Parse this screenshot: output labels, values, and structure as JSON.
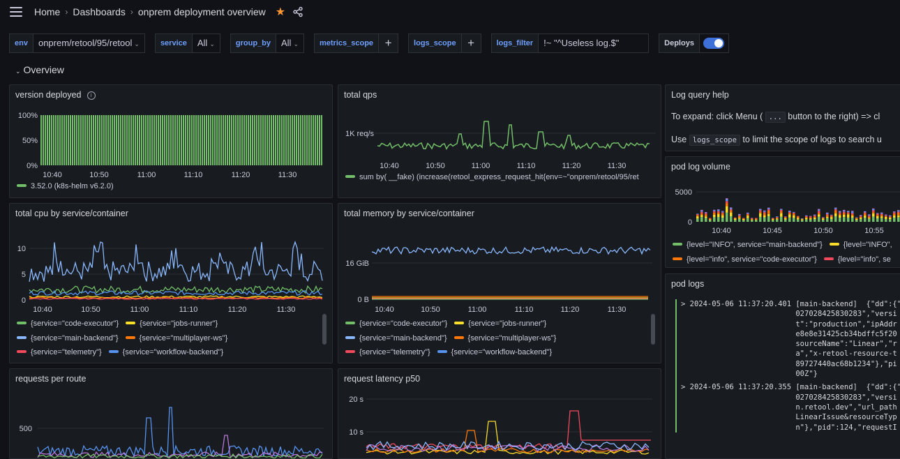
{
  "breadcrumb": {
    "home": "Home",
    "section": "Dashboards",
    "page": "onprem deployment overview"
  },
  "icons": {
    "menu": "hamburger-icon",
    "star": "star-icon",
    "share": "share-icon",
    "info": "info-icon",
    "chevron": "chevron-down-icon"
  },
  "colors": {
    "green": "#73bf69",
    "yellow": "#fade2a",
    "blue": "#8ab8ff",
    "orange": "#ff780a",
    "red": "#f2495c",
    "indigo": "#5794f2",
    "purple": "#b877d9",
    "accent": "#3d71d9"
  },
  "variables": {
    "env": {
      "label": "env",
      "value": "onprem/retool/95/retool"
    },
    "service": {
      "label": "service",
      "value": "All"
    },
    "group_by": {
      "label": "group_by",
      "value": "All"
    },
    "metrics_scope": {
      "label": "metrics_scope",
      "add": "+"
    },
    "logs_scope": {
      "label": "logs_scope",
      "add": "+"
    },
    "logs_filter": {
      "label": "logs_filter",
      "value": "!~ \"^Useless log.$\""
    },
    "deploys": {
      "label": "Deploys",
      "enabled": true
    }
  },
  "row": {
    "title": "Overview"
  },
  "panels": {
    "version_deployed": {
      "title": "version deployed",
      "y_ticks": [
        "100%",
        "50%",
        "0%"
      ],
      "x_ticks": [
        "10:40",
        "10:50",
        "11:00",
        "11:10",
        "11:20",
        "11:30"
      ],
      "legend": [
        "3.52.0 (k8s-helm v6.2.0)"
      ]
    },
    "total_qps": {
      "title": "total qps",
      "y_ticks": [
        "1K req/s"
      ],
      "x_ticks": [
        "10:40",
        "10:50",
        "11:00",
        "11:10",
        "11:20",
        "11:30"
      ],
      "legend": [
        "sum by( __fake) (increase(retool_express_request_hit{env=~\"onprem/retool/95/ret"
      ]
    },
    "total_cpu": {
      "title": "total cpu by service/container",
      "y_ticks": [
        "10",
        "5",
        "0"
      ],
      "x_ticks": [
        "10:40",
        "10:50",
        "11:00",
        "11:10",
        "11:20",
        "11:30"
      ],
      "legend": [
        "{service=\"code-executor\"}",
        "{service=\"jobs-runner\"}",
        "{service=\"main-backend\"}",
        "{service=\"multiplayer-ws\"}",
        "{service=\"telemetry\"}",
        "{service=\"workflow-backend\"}"
      ]
    },
    "total_memory": {
      "title": "total memory by service/container",
      "y_ticks": [
        "16 GiB",
        "0 B"
      ],
      "x_ticks": [
        "10:40",
        "10:50",
        "11:00",
        "11:10",
        "11:20",
        "11:30"
      ],
      "legend": [
        "{service=\"code-executor\"}",
        "{service=\"jobs-runner\"}",
        "{service=\"main-backend\"}",
        "{service=\"multiplayer-ws\"}",
        "{service=\"telemetry\"}",
        "{service=\"workflow-backend\"}"
      ]
    },
    "requests_per_route": {
      "title": "requests per route",
      "y_ticks": [
        "500"
      ]
    },
    "latency_p50": {
      "title": "request latency p50",
      "y_ticks": [
        "20 s",
        "10 s"
      ]
    },
    "log_query_help": {
      "title": "Log query help",
      "line1_a": "To expand: click Menu (",
      "line1_code": "...",
      "line1_b": "button to the right) => cl",
      "line2_a": "Use",
      "line2_code": "logs_scope",
      "line2_b": "to limit the scope of logs to search u"
    },
    "pod_log_volume": {
      "title": "pod log volume",
      "y_ticks": [
        "5000",
        "0"
      ],
      "x_ticks": [
        "10:40",
        "10:45",
        "10:50",
        "10:55"
      ],
      "legend": [
        "{level=\"INFO\", service=\"main-backend\"}",
        "{level=\"INFO\",",
        "{level=\"info\", service=\"code-executor\"}",
        "{level=\"info\", se"
      ]
    },
    "pod_logs": {
      "title": "pod logs",
      "entries": [
        {
          "lines": [
            "> 2024-05-06 11:37:20.401 [main-backend]  {\"dd\":{\"",
            "                          027028425830283\",\"versi",
            "                          t\":\"production\",\"ipAddr",
            "                          e8e8e31425cb34bdffc5f20",
            "                          sourceName\":\"Linear\",\"r",
            "                          a\",\"x-retool-resource-t",
            "                          89727440ac68b1234\"},\"pi",
            "                          00Z\"}"
          ]
        },
        {
          "lines": [
            "> 2024-05-06 11:37:20.355 [main-backend]  {\"dd\":{\"",
            "                          027028425830283\",\"versi",
            "                          n.retool.dev\",\"url_path",
            "                          LinearIssue&resourceTyp",
            "                          n\"},\"pid\":124,\"requestI"
          ]
        }
      ]
    }
  }
}
